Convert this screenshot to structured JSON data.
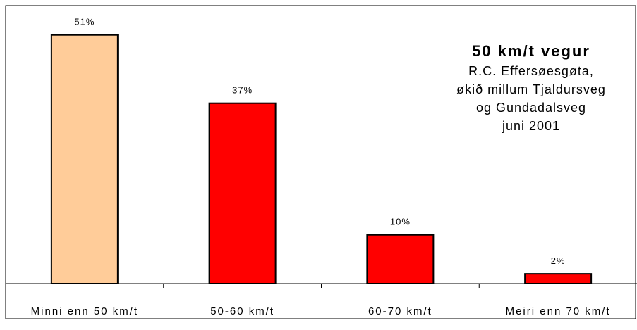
{
  "chart_data": {
    "type": "bar",
    "title": "50 km/t vegur",
    "subtitle_lines": [
      "R.C. Effersøesgøta,",
      "økið millum Tjaldursveg",
      "og Gundadalsveg",
      "juni 2001"
    ],
    "categories": [
      "Minni enn 50 km/t",
      "50-60 km/t",
      "60-70 km/t",
      "Meiri enn 70 km/t"
    ],
    "values": [
      51,
      37,
      10,
      2
    ],
    "data_labels": [
      "51%",
      "37%",
      "10%",
      "2%"
    ],
    "ylim": [
      0,
      55
    ],
    "grid": false,
    "legend": "none",
    "colors": [
      "#FFCC99",
      "#FF0000",
      "#FF0000",
      "#FF0000"
    ],
    "axis_color": "#000000"
  }
}
